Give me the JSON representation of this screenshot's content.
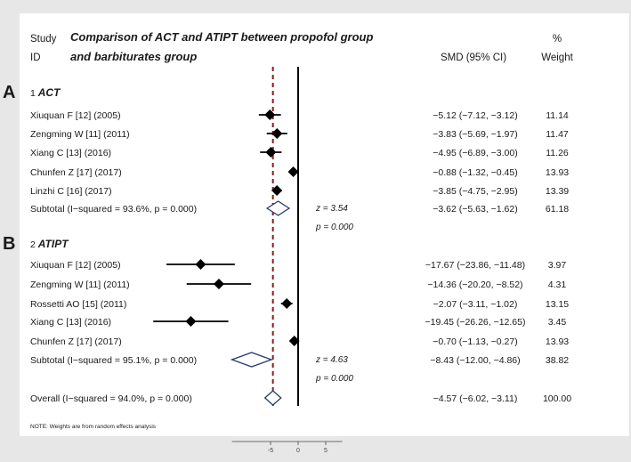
{
  "header": {
    "study_label": "Study",
    "id_label": "ID",
    "title_line1": "Comparison of ACT and ATIPT between propofol group",
    "title_line2": "and barbiturates group",
    "smd_label": "SMD (95% CI)",
    "pct_label": "%",
    "weight_label": "Weight"
  },
  "panel_labels": {
    "a": "A",
    "b": "B"
  },
  "note": "NOTE: Weights are from random effects analysis",
  "chart_data": {
    "type": "forest",
    "xlim": [
      -30,
      10
    ],
    "ticks": [
      -5,
      0,
      5
    ],
    "tick_labels": [
      "-5",
      "0",
      "5"
    ],
    "null_line": 0,
    "overall_line": -4.57,
    "groups": [
      {
        "num": "1",
        "name": "ACT",
        "studies": [
          {
            "label": "Xiuquan F [12] (2005)",
            "smd": -5.12,
            "lo": -7.12,
            "hi": -3.12,
            "smd_text": "−5.12 (−7.12, −3.12)",
            "weight": "11.14"
          },
          {
            "label": "Zengming W [11] (2011)",
            "smd": -3.83,
            "lo": -5.69,
            "hi": -1.97,
            "smd_text": "−3.83 (−5.69, −1.97)",
            "weight": "11.47"
          },
          {
            "label": "Xiang C [13] (2016)",
            "smd": -4.95,
            "lo": -6.89,
            "hi": -3.0,
            "smd_text": "−4.95 (−6.89, −3.00)",
            "weight": "11.26"
          },
          {
            "label": "Chunfen Z [17] (2017)",
            "smd": -0.88,
            "lo": -1.32,
            "hi": -0.45,
            "smd_text": "−0.88 (−1.32, −0.45)",
            "weight": "13.93"
          },
          {
            "label": "Linzhi C [16] (2017)",
            "smd": -3.85,
            "lo": -4.75,
            "hi": -2.95,
            "smd_text": "−3.85 (−4.75, −2.95)",
            "weight": "13.39"
          }
        ],
        "subtotal": {
          "label": "Subtotal  (I−squared = 93.6%, p = 0.000)",
          "smd": -3.62,
          "lo": -5.63,
          "hi": -1.62,
          "smd_text": "−3.62 (−5.63, −1.62)",
          "weight": "61.18",
          "z": "z =  3.54",
          "p": "p = 0.000"
        }
      },
      {
        "num": "2",
        "name": "ATIPT",
        "studies": [
          {
            "label": "Xiuquan F [12] (2005)",
            "smd": -17.67,
            "lo": -23.86,
            "hi": -11.48,
            "smd_text": "−17.67 (−23.86, −11.48)",
            "weight": "3.97"
          },
          {
            "label": "Zengming W [11] (2011)",
            "smd": -14.36,
            "lo": -20.2,
            "hi": -8.52,
            "smd_text": "−14.36 (−20.20, −8.52)",
            "weight": "4.31"
          },
          {
            "label": "Rossetti AO [15] (2011)",
            "smd": -2.07,
            "lo": -3.11,
            "hi": -1.02,
            "smd_text": "−2.07 (−3.11, −1.02)",
            "weight": "13.15"
          },
          {
            "label": "Xiang C [13] (2016)",
            "smd": -19.45,
            "lo": -26.26,
            "hi": -12.65,
            "smd_text": "−19.45 (−26.26, −12.65)",
            "weight": "3.45"
          },
          {
            "label": "Chunfen Z [17] (2017)",
            "smd": -0.7,
            "lo": -1.13,
            "hi": -0.27,
            "smd_text": "−0.70 (−1.13, −0.27)",
            "weight": "13.93"
          }
        ],
        "subtotal": {
          "label": "Subtotal  (I−squared = 95.1%, p = 0.000)",
          "smd": -8.43,
          "lo": -12.0,
          "hi": -4.86,
          "smd_text": "−8.43 (−12.00, −4.86)",
          "weight": "38.82",
          "z": "z =  4.63",
          "p": "p = 0.000"
        }
      }
    ],
    "overall": {
      "label": "Overall  (I−squared = 94.0%, p = 0.000)",
      "smd": -4.57,
      "lo": -6.02,
      "hi": -3.11,
      "smd_text": "−4.57 (−6.02, −3.11)",
      "weight": "100.00"
    },
    "colors": {
      "marker": "#000000",
      "diamond_stroke": "#2a3a6e",
      "overall_line": "#8b1a1a",
      "null_line": "#000000"
    }
  }
}
